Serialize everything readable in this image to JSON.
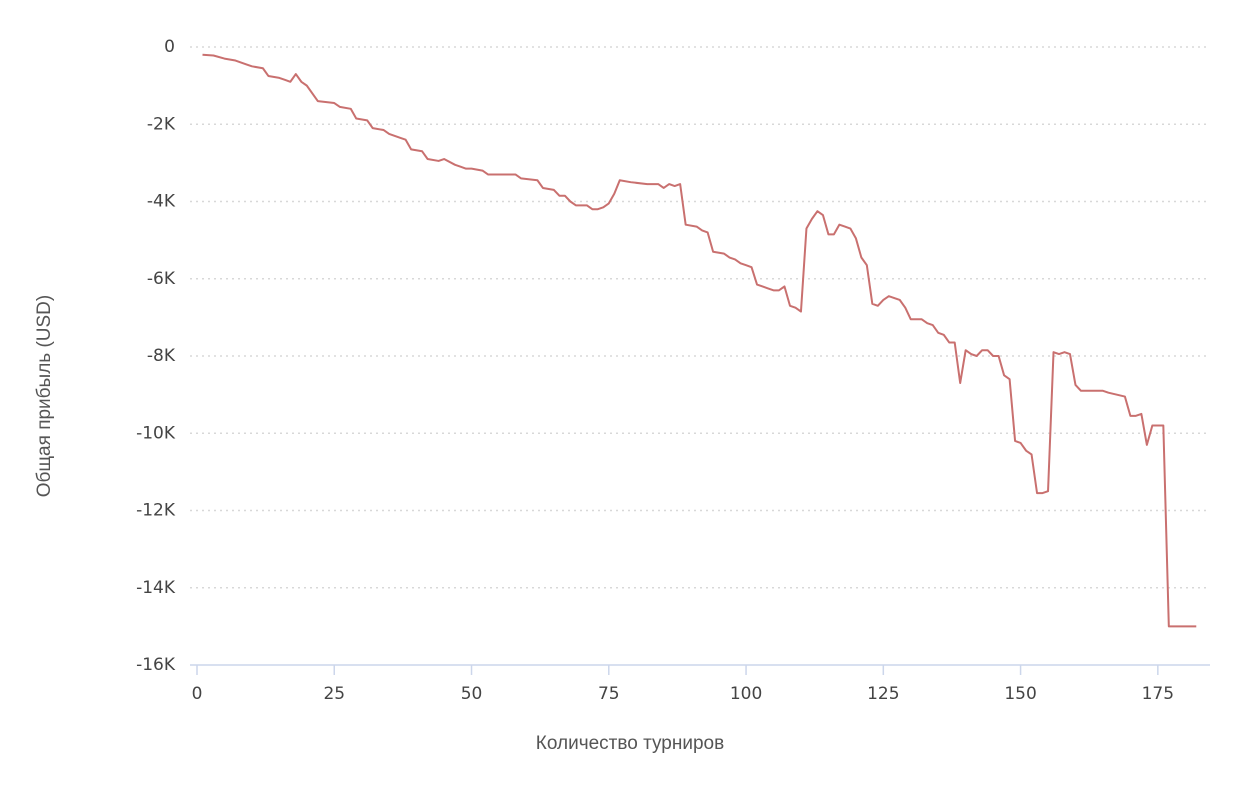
{
  "chart_data": {
    "type": "line",
    "x_label": "Количество турниров",
    "y_label": "Общая прибыль (USD)",
    "x": [
      1,
      3,
      5,
      7,
      9,
      10,
      12,
      13,
      15,
      16,
      17,
      18,
      19,
      20,
      22,
      25,
      26,
      28,
      29,
      31,
      32,
      34,
      35,
      37,
      38,
      39,
      41,
      42,
      44,
      45,
      47,
      48,
      49,
      50,
      52,
      53,
      55,
      58,
      59,
      62,
      63,
      65,
      66,
      67,
      68,
      69,
      71,
      72,
      73,
      74,
      75,
      76,
      77,
      79,
      82,
      84,
      85,
      86,
      87,
      88,
      89,
      91,
      92,
      93,
      94,
      96,
      97,
      98,
      99,
      100,
      101,
      102,
      103,
      104,
      105,
      106,
      107,
      108,
      109,
      110,
      111,
      112,
      113,
      114,
      115,
      116,
      117,
      118,
      119,
      120,
      121,
      122,
      123,
      124,
      125,
      126,
      127,
      128,
      129,
      130,
      131,
      132,
      133,
      134,
      135,
      136,
      137,
      138,
      139,
      140,
      141,
      142,
      143,
      144,
      145,
      146,
      147,
      148,
      149,
      150,
      151,
      152,
      153,
      154,
      155,
      156,
      157,
      158,
      159,
      160,
      161,
      165,
      166,
      169,
      170,
      171,
      172,
      173,
      174,
      175,
      176,
      177,
      182
    ],
    "series": [
      {
        "name": "Общая прибыль",
        "color": "#c9706f",
        "values": [
          -200,
          -220,
          -300,
          -350,
          -450,
          -500,
          -550,
          -750,
          -800,
          -850,
          -900,
          -700,
          -900,
          -1000,
          -1400,
          -1450,
          -1550,
          -1600,
          -1850,
          -1900,
          -2100,
          -2150,
          -2250,
          -2350,
          -2400,
          -2650,
          -2700,
          -2900,
          -2950,
          -2900,
          -3050,
          -3100,
          -3150,
          -3150,
          -3200,
          -3300,
          -3300,
          -3300,
          -3400,
          -3450,
          -3650,
          -3700,
          -3850,
          -3850,
          -4000,
          -4100,
          -4100,
          -4200,
          -4200,
          -4150,
          -4050,
          -3800,
          -3450,
          -3500,
          -3550,
          -3550,
          -3650,
          -3550,
          -3600,
          -3550,
          -4600,
          -4650,
          -4750,
          -4800,
          -5300,
          -5350,
          -5450,
          -5500,
          -5600,
          -5650,
          -5700,
          -6150,
          -6200,
          -6250,
          -6300,
          -6300,
          -6200,
          -6700,
          -6750,
          -6850,
          -4700,
          -4450,
          -4250,
          -4350,
          -4850,
          -4850,
          -4600,
          -4650,
          -4700,
          -4950,
          -5450,
          -5650,
          -6650,
          -6700,
          -6550,
          -6450,
          -6500,
          -6550,
          -6750,
          -7050,
          -7050,
          -7050,
          -7150,
          -7200,
          -7400,
          -7450,
          -7650,
          -7650,
          -8700,
          -7850,
          -7950,
          -8000,
          -7850,
          -7850,
          -8000,
          -8000,
          -8500,
          -8600,
          -10200,
          -10250,
          -10450,
          -10550,
          -11550,
          -11550,
          -11500,
          -7900,
          -7950,
          -7900,
          -7950,
          -8750,
          -8900,
          -8900,
          -8950,
          -9050,
          -9550,
          -9550,
          -9500,
          -10300,
          -9800,
          -9800,
          -9800,
          -15000,
          -15000
        ]
      }
    ],
    "xlim": [
      0,
      184.5
    ],
    "ylim": [
      -16000,
      0
    ],
    "xticks": [
      0,
      25,
      50,
      75,
      100,
      125,
      150,
      175
    ],
    "yticks": [
      0,
      {
        "value": -2000,
        "label": "-2K"
      },
      {
        "value": -4000,
        "label": "-4K"
      },
      {
        "value": -6000,
        "label": "-6K"
      },
      {
        "value": -8000,
        "label": "-8K"
      },
      {
        "value": -10000,
        "label": "-10K"
      },
      {
        "value": -12000,
        "label": "-12K"
      },
      {
        "value": -14000,
        "label": "-14K"
      },
      {
        "value": -16000,
        "label": "-16K"
      }
    ],
    "grid": true
  }
}
